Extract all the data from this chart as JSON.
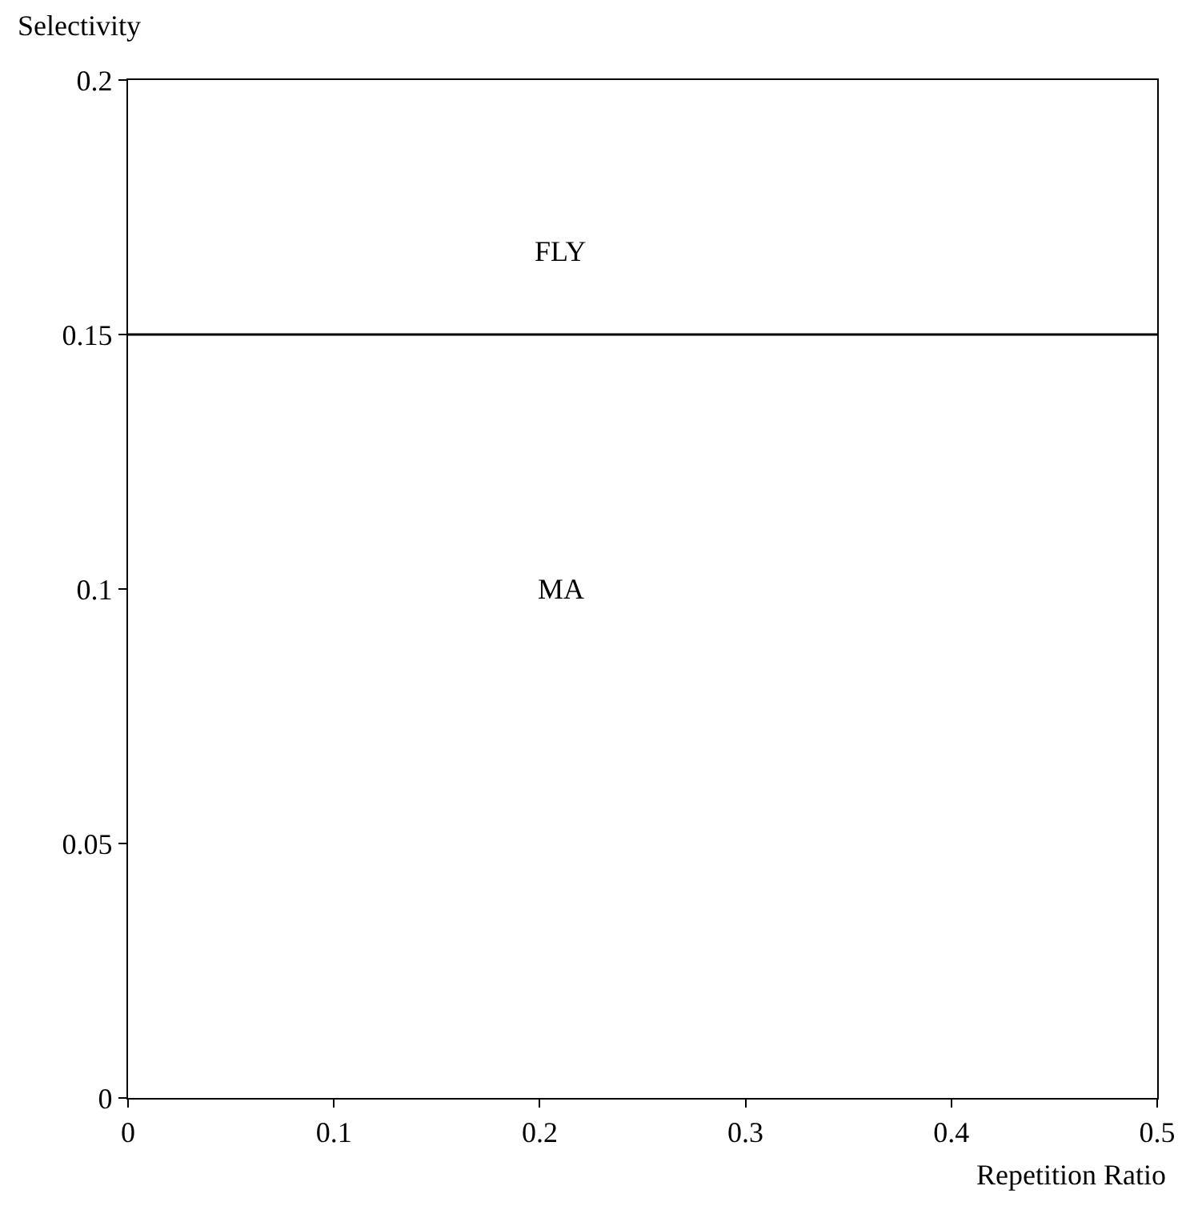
{
  "chart_data": {
    "type": "line",
    "xlabel": "Repetition Ratio",
    "ylabel": "Selectivity",
    "x": [
      0,
      0.5
    ],
    "series": [
      {
        "color": "#000000",
        "values": [
          0.15,
          0.15
        ]
      }
    ],
    "annotations": [
      "FLY",
      "MA"
    ],
    "xlim": [
      0,
      0.5
    ],
    "xticks": [
      0,
      0.1,
      0.2,
      0.3,
      0.4,
      0.5
    ],
    "ylim": [
      0,
      0.2
    ],
    "yticks": [
      0,
      0.05,
      0.1,
      0.15,
      0.2
    ],
    "marker": "none",
    "line_style": "solid"
  }
}
